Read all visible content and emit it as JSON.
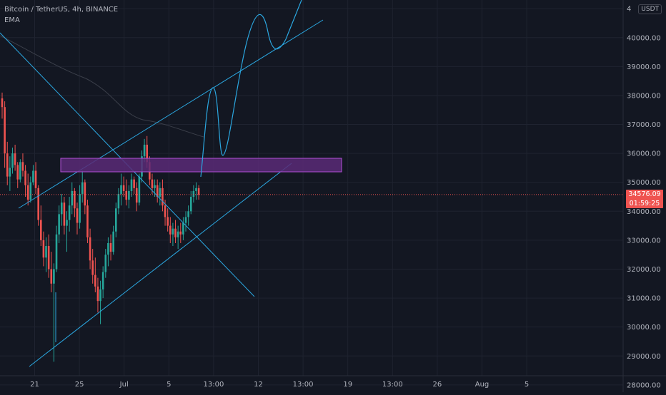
{
  "legend": {
    "symbol": "Bitcoin / TetherUS, 4h, BINANCE",
    "indicator": "EMA"
  },
  "currency_badge": "USDT",
  "last_price": {
    "value": "34576.09",
    "countdown": "01:59:25",
    "numeric": 34576
  },
  "colors": {
    "background": "#131722",
    "up": "#26a69a",
    "down": "#ef5350",
    "drawing": "#2ba7e0",
    "zone_fill": "#5b2a77",
    "zone_border": "#b04fd6",
    "ema": "#3b3f4a"
  },
  "chart_data": {
    "type": "candlestick",
    "title": "Bitcoin / TetherUS, 4h, BINANCE",
    "ylim": [
      27750,
      41300
    ],
    "y_ticks": [
      "28000.00",
      "29000.00",
      "30000.00",
      "31000.00",
      "32000.00",
      "33000.00",
      "34000.00",
      "35000.00",
      "36000.00",
      "37000.00",
      "38000.00",
      "39000.00",
      "40000.00",
      "4"
    ],
    "x_ticks": [
      "21",
      "25",
      "Jul",
      "5",
      "13:00",
      "12",
      "13:00",
      "19",
      "13:00",
      "26",
      "Aug",
      "5"
    ],
    "y_axis": "right",
    "candles_from": "June 18",
    "candles_to": "July 3",
    "candles": [
      [
        37900,
        38100,
        37200,
        37600
      ],
      [
        37600,
        37800,
        35500,
        36000
      ],
      [
        36000,
        36400,
        34900,
        35200
      ],
      [
        35200,
        35900,
        34700,
        35500
      ],
      [
        35500,
        36200,
        35300,
        36000
      ],
      [
        36000,
        36300,
        35400,
        35600
      ],
      [
        35600,
        35700,
        34800,
        35100
      ],
      [
        35100,
        35800,
        35000,
        35700
      ],
      [
        35700,
        36000,
        35200,
        35400
      ],
      [
        35400,
        35600,
        34500,
        34900
      ],
      [
        34900,
        35300,
        34200,
        34400
      ],
      [
        34400,
        35200,
        34300,
        35000
      ],
      [
        35000,
        35600,
        34900,
        35400
      ],
      [
        35400,
        35700,
        34600,
        34800
      ],
      [
        34800,
        34900,
        33500,
        33700
      ],
      [
        33700,
        34200,
        32800,
        33000
      ],
      [
        33000,
        33300,
        32100,
        32400
      ],
      [
        32400,
        33100,
        31900,
        32800
      ],
      [
        32800,
        33200,
        31700,
        32000
      ],
      [
        32000,
        32600,
        31200,
        31500
      ],
      [
        31500,
        32200,
        28800,
        32000
      ],
      [
        32000,
        33500,
        31900,
        33200
      ],
      [
        33200,
        34200,
        32900,
        33900
      ],
      [
        33900,
        34600,
        33500,
        34300
      ],
      [
        34300,
        34500,
        33200,
        33500
      ],
      [
        33500,
        34000,
        32600,
        33700
      ],
      [
        33700,
        34500,
        33300,
        34200
      ],
      [
        34200,
        35000,
        33900,
        34700
      ],
      [
        34700,
        34800,
        33800,
        34100
      ],
      [
        34100,
        34300,
        33200,
        33600
      ],
      [
        33600,
        34900,
        33400,
        34600
      ],
      [
        34600,
        35400,
        34300,
        35000
      ],
      [
        35000,
        35100,
        33900,
        34200
      ],
      [
        34200,
        34400,
        32900,
        33100
      ],
      [
        33100,
        33400,
        32000,
        32300
      ],
      [
        32300,
        32700,
        31500,
        31800
      ],
      [
        31800,
        32400,
        31200,
        31400
      ],
      [
        31400,
        31700,
        30500,
        30900
      ],
      [
        30900,
        31600,
        30100,
        31300
      ],
      [
        31300,
        32100,
        31000,
        31900
      ],
      [
        31900,
        32700,
        31700,
        32500
      ],
      [
        32500,
        33100,
        32100,
        32900
      ],
      [
        32900,
        33200,
        32300,
        32600
      ],
      [
        32600,
        33500,
        32500,
        33300
      ],
      [
        33300,
        34300,
        33100,
        34100
      ],
      [
        34100,
        34800,
        33900,
        34600
      ],
      [
        34600,
        35300,
        34200,
        34900
      ],
      [
        34900,
        35200,
        34500,
        34700
      ],
      [
        34700,
        35100,
        34200,
        34400
      ],
      [
        34400,
        34900,
        34100,
        34700
      ],
      [
        34700,
        35300,
        34500,
        35100
      ],
      [
        35100,
        35200,
        34600,
        34800
      ],
      [
        34800,
        35000,
        34000,
        34300
      ],
      [
        34300,
        35300,
        34200,
        35200
      ],
      [
        35200,
        36100,
        35000,
        35900
      ],
      [
        35900,
        36500,
        35700,
        36300
      ],
      [
        36300,
        36600,
        35500,
        35700
      ],
      [
        35700,
        35900,
        34900,
        35100
      ],
      [
        35100,
        35300,
        34600,
        34800
      ],
      [
        34800,
        35100,
        34500,
        34900
      ],
      [
        34900,
        35100,
        34300,
        34500
      ],
      [
        34500,
        35000,
        34200,
        34800
      ],
      [
        34800,
        35100,
        34000,
        34200
      ],
      [
        34200,
        34400,
        33500,
        33800
      ],
      [
        33800,
        34100,
        33300,
        33500
      ],
      [
        33500,
        33800,
        32900,
        33200
      ],
      [
        33200,
        33600,
        32800,
        33400
      ],
      [
        33400,
        33700,
        32900,
        33100
      ],
      [
        33100,
        33500,
        32700,
        33300
      ],
      [
        33300,
        33600,
        32900,
        33200
      ],
      [
        33200,
        33800,
        33000,
        33600
      ],
      [
        33600,
        34000,
        33300,
        33800
      ],
      [
        33800,
        34200,
        33500,
        34000
      ],
      [
        34000,
        34700,
        33900,
        34500
      ],
      [
        34500,
        34900,
        34300,
        34700
      ],
      [
        34700,
        35000,
        34400,
        34800
      ],
      [
        34800,
        34900,
        34400,
        34576
      ]
    ]
  }
}
